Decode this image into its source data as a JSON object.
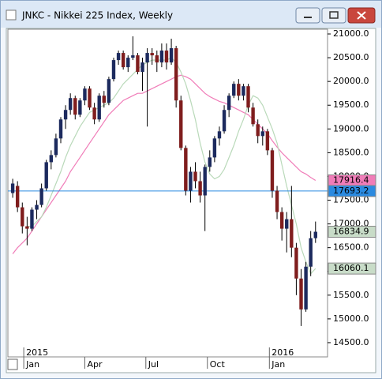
{
  "chart_data": {
    "type": "candlestick",
    "title": "JNKC - Nikkei 225 Index, Weekly",
    "open": [
      17650,
      17800,
      17350,
      16950,
      16900,
      17300,
      17400,
      17750,
      18300,
      18450,
      18800,
      19200,
      19400,
      19650,
      19300,
      19600,
      19850,
      19450,
      19200,
      19700,
      19550,
      20050,
      20450,
      20600,
      20300,
      20500,
      20550,
      20200,
      20400,
      20600,
      20550,
      20400,
      20650,
      20400,
      20700,
      19600,
      18600,
      17700,
      18100,
      17900,
      17600,
      18200,
      18400,
      18800,
      18950,
      19400,
      19700,
      19950,
      19700,
      19900,
      19450,
      19100,
      18850,
      18950,
      18550,
      17700,
      17250,
      16900,
      17100,
      16500,
      15850,
      15200,
      16100,
      16700
    ],
    "high": [
      17950,
      17900,
      17450,
      17150,
      17350,
      17500,
      17850,
      18350,
      18550,
      18900,
      19250,
      19500,
      19750,
      19700,
      19650,
      19900,
      19900,
      19550,
      19750,
      19800,
      20100,
      20500,
      20650,
      20650,
      20550,
      20950,
      20600,
      20500,
      20700,
      20700,
      20650,
      20800,
      20800,
      20900,
      20750,
      19700,
      18650,
      18200,
      18300,
      18100,
      18250,
      18550,
      18850,
      19050,
      19500,
      19750,
      20000,
      20050,
      19950,
      19950,
      19550,
      19200,
      19050,
      19000,
      18600,
      17800,
      17350,
      17250,
      17800,
      16600,
      16050,
      16200,
      16850,
      17050
    ],
    "low": [
      17550,
      17250,
      16800,
      16550,
      16850,
      17100,
      17350,
      17700,
      18150,
      18400,
      18700,
      19000,
      19300,
      19200,
      19250,
      19500,
      19400,
      19100,
      19150,
      19450,
      19500,
      20000,
      20350,
      20250,
      20200,
      20450,
      20150,
      19800,
      19050,
      20350,
      20200,
      20300,
      20250,
      20350,
      19450,
      18550,
      17600,
      17450,
      17750,
      17450,
      16850,
      18100,
      18300,
      18650,
      18900,
      19250,
      19650,
      19600,
      19600,
      19350,
      19050,
      18700,
      18650,
      18450,
      17550,
      17100,
      16650,
      16400,
      16300,
      15500,
      14850,
      15150,
      15900,
      16600
    ],
    "close": [
      17850,
      17350,
      16950,
      16900,
      17300,
      17400,
      17750,
      18300,
      18450,
      18800,
      19200,
      19400,
      19650,
      19300,
      19600,
      19850,
      19450,
      19200,
      19700,
      19550,
      20050,
      20450,
      20600,
      20300,
      20500,
      20550,
      20200,
      20400,
      20600,
      20550,
      20400,
      20650,
      20400,
      20700,
      19600,
      18600,
      17700,
      18100,
      17900,
      17600,
      18200,
      18400,
      18800,
      18950,
      19400,
      19700,
      19950,
      19700,
      19900,
      19450,
      19100,
      18850,
      18950,
      18550,
      17700,
      17250,
      16900,
      17100,
      16500,
      15850,
      15200,
      16100,
      16700,
      16834.9
    ],
    "up_color": "#1c2a5e",
    "down_color": "#7f1d1d",
    "series": [
      {
        "color": "#f07cb8",
        "values": [
          16370,
          16500,
          16600,
          16700,
          16850,
          17000,
          17150,
          17300,
          17450,
          17600,
          17750,
          17900,
          18100,
          18250,
          18400,
          18550,
          18700,
          18850,
          19000,
          19150,
          19300,
          19400,
          19500,
          19600,
          19650,
          19700,
          19750,
          19750,
          19800,
          19850,
          19900,
          19950,
          20000,
          20050,
          20100,
          20130,
          20100,
          20050,
          19950,
          19850,
          19750,
          19680,
          19630,
          19580,
          19550,
          19500,
          19450,
          19400,
          19350,
          19300,
          19200,
          19100,
          19000,
          18900,
          18750,
          18620,
          18500,
          18400,
          18300,
          18200,
          18100,
          18050,
          17980,
          17916.4
        ]
      },
      {
        "color": "#b9d9b9",
        "values": [
          null,
          null,
          null,
          16950,
          16950,
          17050,
          17150,
          17350,
          17600,
          17850,
          18100,
          18400,
          18650,
          18850,
          19050,
          19200,
          19350,
          19400,
          19450,
          19500,
          19550,
          19650,
          19800,
          19950,
          20050,
          20150,
          20250,
          20350,
          20400,
          20450,
          20450,
          20450,
          20450,
          20500,
          20400,
          20200,
          19950,
          19600,
          19200,
          18700,
          18300,
          18050,
          17950,
          18000,
          18150,
          18400,
          18650,
          18950,
          19200,
          19500,
          19700,
          19650,
          19500,
          19250,
          19000,
          18700,
          18250,
          17800,
          17400,
          17000,
          16500,
          16200,
          15950,
          16060.1
        ]
      }
    ],
    "price_markers": [
      {
        "value": 17916.4,
        "color": "#f07cb8"
      },
      {
        "value": 17693.2,
        "color": "#2a8ae0",
        "line": true
      },
      {
        "value": 16834.9,
        "color": "#c8dcc8"
      },
      {
        "value": 16060.1,
        "color": "#c8dcc8"
      }
    ],
    "xlim": [
      -1,
      65.5
    ],
    "ylim": [
      14200,
      21100
    ],
    "xticks": [
      {
        "value": 2.3,
        "label": "Jan"
      },
      {
        "value": 15,
        "label": "Apr"
      },
      {
        "value": 27.7,
        "label": "Jul"
      },
      {
        "value": 40.5,
        "label": "Oct"
      },
      {
        "value": 53.4,
        "label": "Jan"
      }
    ],
    "year_ticks": [
      {
        "value": 2.3,
        "label": "2015"
      },
      {
        "value": 53.4,
        "label": "2016"
      }
    ],
    "yticks": [
      {
        "value": 21000,
        "label": "21000.0"
      },
      {
        "value": 20500,
        "label": "20500.0"
      },
      {
        "value": 20000,
        "label": "20000.0"
      },
      {
        "value": 19500,
        "label": "19500.0"
      },
      {
        "value": 19000,
        "label": "19000.0"
      },
      {
        "value": 18500,
        "label": "18500.0"
      },
      {
        "value": 18000,
        "label": "18000.0"
      },
      {
        "value": 17500,
        "label": "17500.0"
      },
      {
        "value": 17000,
        "label": "17000.0"
      },
      {
        "value": 16500,
        "label": "16500.0"
      },
      {
        "value": 16000,
        "label": "16000.0"
      },
      {
        "value": 15500,
        "label": "15500.0"
      },
      {
        "value": 15000,
        "label": "15000.0"
      },
      {
        "value": 14500,
        "label": "14500.0"
      }
    ]
  }
}
